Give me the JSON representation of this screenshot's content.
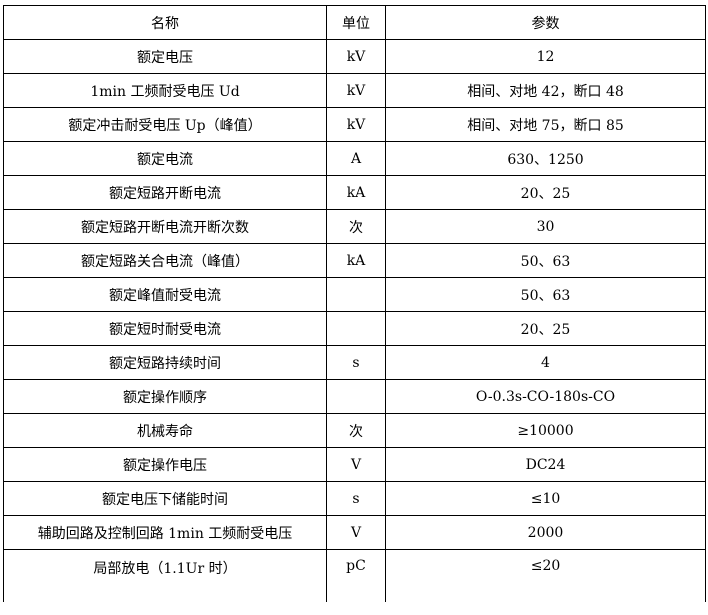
{
  "header": {
    "name": "名称",
    "unit": "单位",
    "value": "参数"
  },
  "rows": [
    {
      "name": "额定电压",
      "unit": "kV",
      "value": "12"
    },
    {
      "name": "1min 工频耐受电压 Ud",
      "unit": "kV",
      "value": "相间、对地 42，断口 48"
    },
    {
      "name": "额定冲击耐受电压 Up（峰值）",
      "unit": "kV",
      "value": "相间、对地 75，断口 85"
    },
    {
      "name": "额定电流",
      "unit": "A",
      "value": "630、1250"
    },
    {
      "name": "额定短路开断电流",
      "unit": "kA",
      "value": "20、25"
    },
    {
      "name": "额定短路开断电流开断次数",
      "unit": "次",
      "value": "30"
    },
    {
      "name": "额定短路关合电流（峰值）",
      "unit": "kA",
      "value": "50、63"
    },
    {
      "name": "额定峰值耐受电流",
      "unit": "",
      "value": "50、63"
    },
    {
      "name": "额定短时耐受电流",
      "unit": "",
      "value": "20、25"
    },
    {
      "name": "额定短路持续时间",
      "unit": "s",
      "value": "4"
    },
    {
      "name": "额定操作顺序",
      "unit": "",
      "value": "O-0.3s-CO-180s-CO"
    },
    {
      "name": "机械寿命",
      "unit": "次",
      "value": "≥10000"
    },
    {
      "name": "额定操作电压",
      "unit": "V",
      "value": "DC24"
    },
    {
      "name": "额定电压下储能时间",
      "unit": "s",
      "value": "≤10"
    },
    {
      "name": "辅助回路及控制回路 1min 工频耐受电压",
      "unit": "V",
      "value": "2000"
    },
    {
      "name": "局部放电（1.1Ur 时）",
      "unit": "pC",
      "value": "≤20"
    }
  ]
}
